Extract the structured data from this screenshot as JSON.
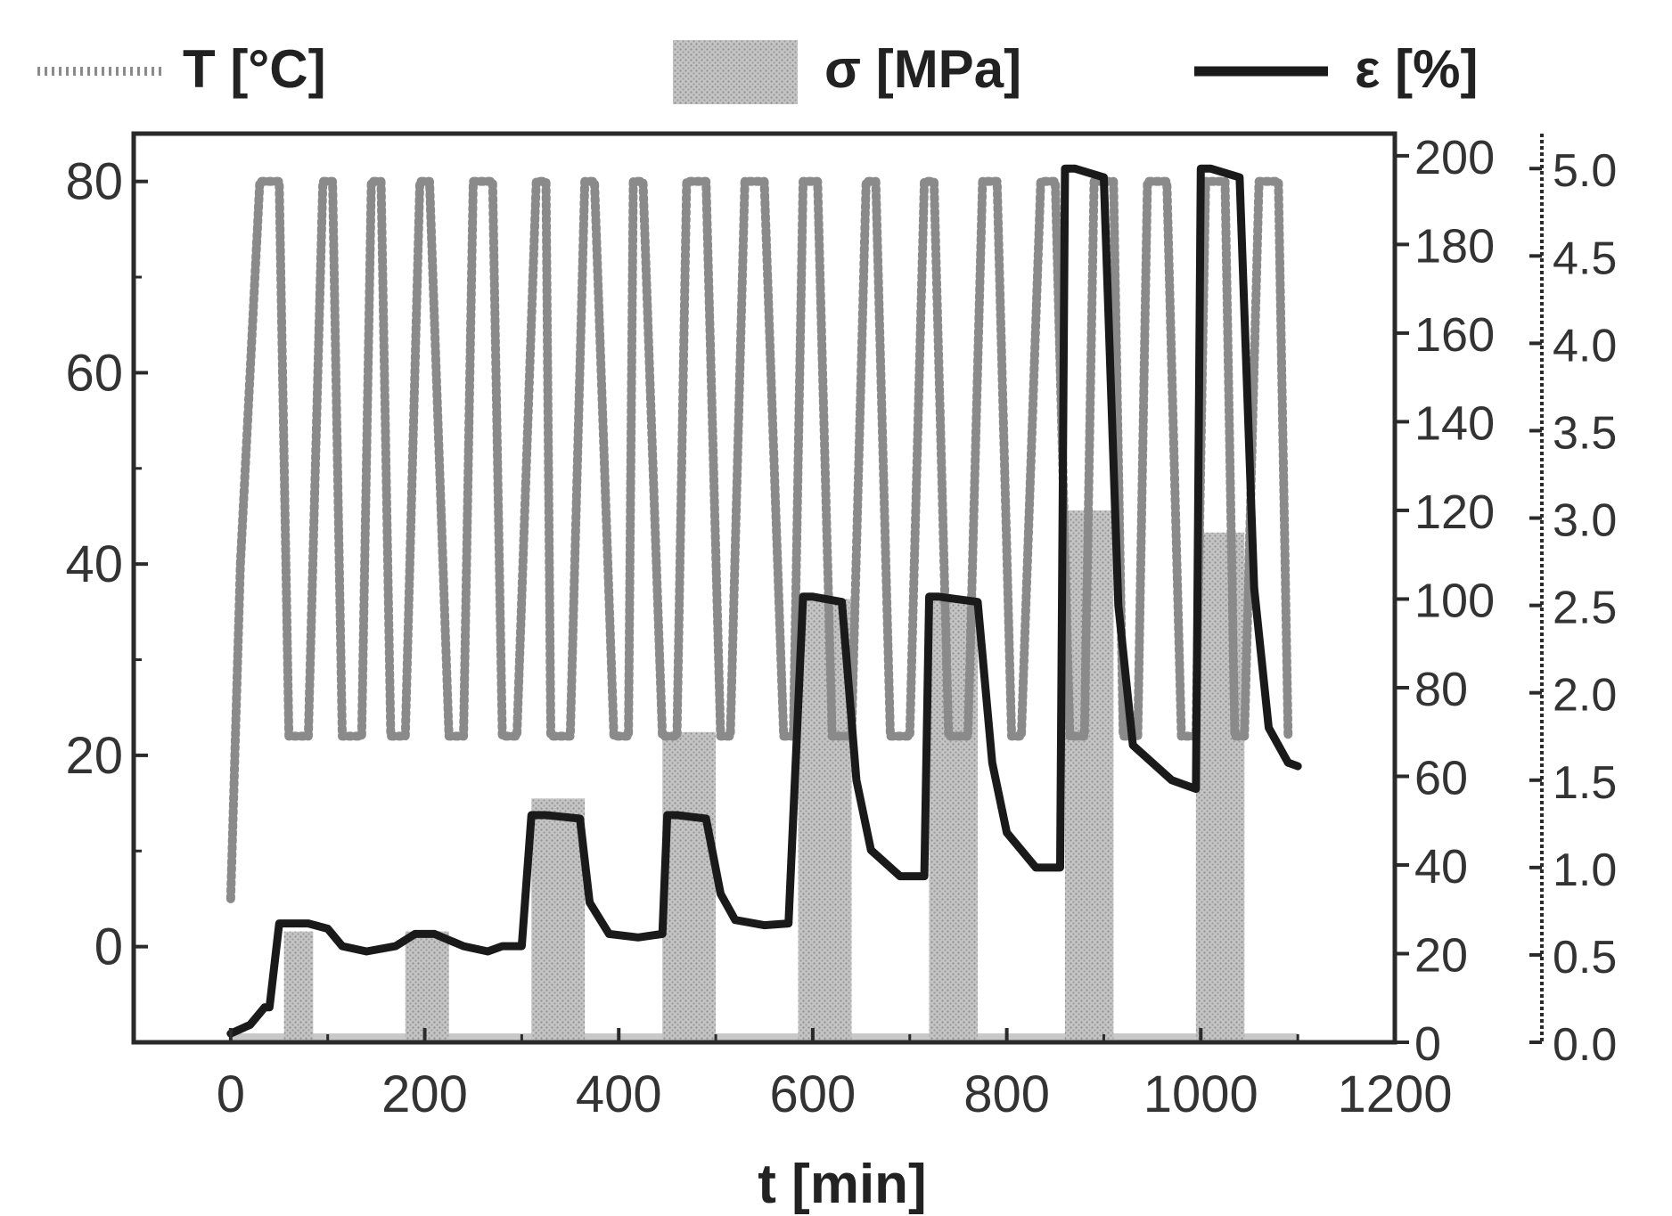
{
  "chart_data": {
    "type": "line",
    "xlabel": "t [min]",
    "xlim": [
      -100,
      1200
    ],
    "x_ticks": [
      "0",
      "200",
      "400",
      "600",
      "800",
      "1000",
      "1200"
    ],
    "y_left": {
      "ylim": [
        -10,
        85
      ],
      "ticks": [
        "0",
        "20",
        "40",
        "60",
        "80"
      ]
    },
    "y_right_stress": {
      "ylim": [
        0,
        205
      ],
      "ticks": [
        "0",
        "20",
        "40",
        "60",
        "80",
        "100",
        "120",
        "140",
        "160",
        "180",
        "200"
      ]
    },
    "y_right_strain": {
      "ylim": [
        0.0,
        5.2
      ],
      "ticks": [
        "0.0",
        "0.5",
        "1.0",
        "1.5",
        "2.0",
        "2.5",
        "3.0",
        "3.5",
        "4.0",
        "4.5",
        "5.0"
      ]
    },
    "legend": {
      "placement": "top",
      "entries": [
        {
          "label": "T [°C]",
          "style": "dotted"
        },
        {
          "label": "σ [MPa]",
          "style": "shaded-bar"
        },
        {
          "label": "ε [%]",
          "style": "solid-thick"
        }
      ]
    },
    "colors": {
      "temperature": "#8a8a8a",
      "stress": "#b9b9b9",
      "stress_base": "#c8c8c8",
      "strain": "#1a1a1a",
      "frame": "#2a2a2a"
    },
    "series": [
      {
        "name": "T [°C]",
        "axis": "y_left",
        "x": [
          0,
          10,
          30,
          50,
          60,
          80,
          95,
          105,
          115,
          135,
          145,
          155,
          165,
          180,
          195,
          205,
          225,
          240,
          250,
          270,
          280,
          295,
          315,
          325,
          330,
          350,
          365,
          375,
          395,
          410,
          415,
          425,
          445,
          460,
          470,
          490,
          505,
          515,
          530,
          550,
          570,
          580,
          590,
          605,
          620,
          640,
          655,
          665,
          680,
          700,
          715,
          725,
          740,
          760,
          775,
          790,
          805,
          815,
          835,
          850,
          865,
          880,
          890,
          910,
          920,
          935,
          945,
          965,
          980,
          995,
          1005,
          1025,
          1035,
          1045,
          1060,
          1080,
          1090
        ],
        "y": [
          5,
          40,
          80,
          80,
          22,
          22,
          80,
          80,
          22,
          22,
          80,
          80,
          22,
          22,
          80,
          80,
          22,
          22,
          80,
          80,
          22,
          22,
          80,
          80,
          22,
          22,
          80,
          80,
          22,
          22,
          80,
          80,
          22,
          22,
          80,
          80,
          22,
          22,
          80,
          80,
          22,
          22,
          80,
          80,
          22,
          22,
          80,
          80,
          22,
          22,
          80,
          80,
          22,
          22,
          80,
          80,
          22,
          22,
          80,
          80,
          22,
          22,
          80,
          80,
          22,
          22,
          80,
          80,
          22,
          22,
          80,
          80,
          22,
          22,
          80,
          80,
          22
        ]
      },
      {
        "name": "σ [MPa]",
        "axis": "y_right_stress",
        "baseline": 2,
        "x_range": [
          0,
          1100
        ],
        "pulses": [
          {
            "start": 55,
            "end": 85,
            "value": 25
          },
          {
            "start": 180,
            "end": 225,
            "value": 25
          },
          {
            "start": 310,
            "end": 365,
            "value": 55
          },
          {
            "start": 445,
            "end": 500,
            "value": 70
          },
          {
            "start": 585,
            "end": 640,
            "value": 100
          },
          {
            "start": 720,
            "end": 770,
            "value": 100
          },
          {
            "start": 860,
            "end": 910,
            "value": 120
          },
          {
            "start": 995,
            "end": 1045,
            "value": 115
          }
        ]
      },
      {
        "name": "ε [%]",
        "axis": "y_right_strain",
        "x": [
          0,
          20,
          35,
          40,
          50,
          80,
          100,
          115,
          140,
          170,
          190,
          210,
          240,
          265,
          280,
          300,
          310,
          325,
          360,
          370,
          390,
          420,
          445,
          450,
          460,
          490,
          505,
          520,
          550,
          575,
          590,
          600,
          630,
          645,
          660,
          690,
          715,
          720,
          730,
          770,
          785,
          800,
          830,
          855,
          860,
          870,
          900,
          915,
          930,
          970,
          995,
          1000,
          1010,
          1040,
          1055,
          1070,
          1090,
          1100
        ],
        "y": [
          0.05,
          0.1,
          0.2,
          0.2,
          0.68,
          0.68,
          0.65,
          0.55,
          0.52,
          0.55,
          0.62,
          0.62,
          0.55,
          0.52,
          0.55,
          0.55,
          1.3,
          1.3,
          1.28,
          0.8,
          0.62,
          0.6,
          0.62,
          1.3,
          1.3,
          1.28,
          0.85,
          0.7,
          0.67,
          0.68,
          2.55,
          2.55,
          2.52,
          1.5,
          1.1,
          0.95,
          0.95,
          2.55,
          2.55,
          2.52,
          1.6,
          1.2,
          1.0,
          1.0,
          5.0,
          5.0,
          4.95,
          2.5,
          1.7,
          1.5,
          1.45,
          5.0,
          5.0,
          4.95,
          2.6,
          1.8,
          1.6,
          1.58
        ]
      }
    ]
  }
}
